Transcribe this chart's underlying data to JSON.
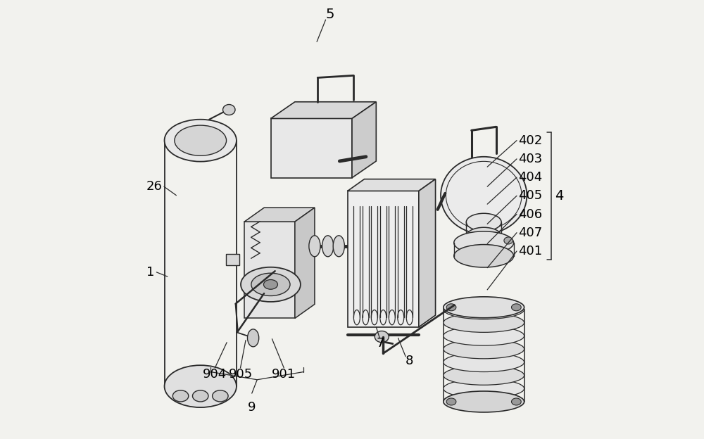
{
  "bg_color": "#f2f2ee",
  "line_color": "#2a2a2a",
  "label_color": "#000000",
  "label_fontsize": 13,
  "title": ""
}
